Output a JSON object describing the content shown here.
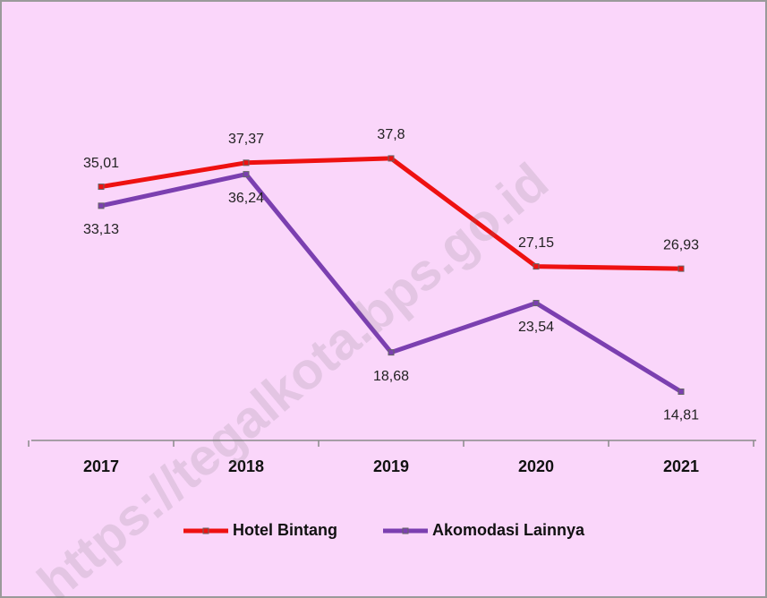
{
  "chart_data": {
    "type": "line",
    "categories": [
      "2017",
      "2018",
      "2019",
      "2020",
      "2021"
    ],
    "series": [
      {
        "name": "Hotel Bintang",
        "color": "#ee1111",
        "values": [
          35.01,
          37.37,
          37.8,
          27.15,
          26.93
        ],
        "value_labels": [
          "35,01",
          "37,37",
          "37,8",
          "27,15",
          "26,93"
        ]
      },
      {
        "name": "Akomodasi Lainnya",
        "color": "#7b3fb0",
        "values": [
          33.13,
          36.24,
          18.68,
          23.54,
          14.81
        ],
        "value_labels": [
          "33,13",
          "36,24",
          "18,68",
          "23,54",
          "14,81"
        ]
      }
    ],
    "ylim": [
      10,
      40
    ],
    "legend": "bottom",
    "watermark": "https://tegalkota.bps.go.id"
  }
}
